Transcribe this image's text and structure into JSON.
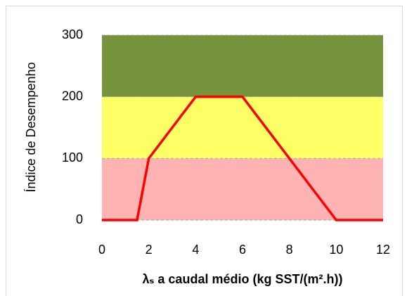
{
  "chart_data": {
    "type": "line",
    "x": [
      0,
      1.5,
      2,
      4,
      6,
      8,
      10,
      12
    ],
    "values": [
      0,
      0,
      100,
      200,
      200,
      100,
      0,
      0
    ],
    "color": "#ff0000",
    "bands": [
      {
        "from": 0,
        "to": 100,
        "color": "#ffb3b3"
      },
      {
        "from": 100,
        "to": 200,
        "color": "#ffff66"
      },
      {
        "from": 200,
        "to": 300,
        "color": "#77933c"
      }
    ],
    "xlim": [
      0,
      12
    ],
    "xticks": [
      0,
      2,
      4,
      6,
      8,
      10,
      12
    ],
    "ylim": [
      0,
      300
    ],
    "yticks": [
      0,
      100,
      200,
      300
    ],
    "grid": true,
    "ylabel": "Índice de Desempenho",
    "xlabel": "λₛ a caudal médio (kg SST/(m².h))"
  }
}
